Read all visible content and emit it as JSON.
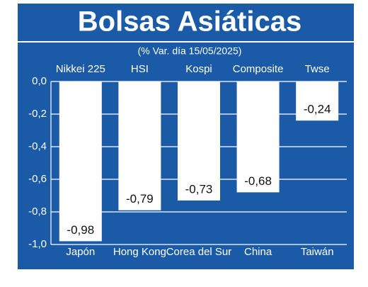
{
  "chart_data": {
    "type": "bar",
    "title": "Bolsas Asiáticas",
    "subtitle": "(% Var. día 15/05/2025)",
    "index_names": [
      "Nikkei 225",
      "HSI",
      "Kospi",
      "Composite",
      "Twse"
    ],
    "categories": [
      "Japón",
      "Hong Kong",
      "Corea del Sur",
      "China",
      "Taiwán"
    ],
    "values": [
      -0.98,
      -0.79,
      -0.73,
      -0.68,
      -0.24
    ],
    "value_labels": [
      "-0,98",
      "-0,79",
      "-0,73",
      "-0,68",
      "-0,24"
    ],
    "color": "#ffffff",
    "background": "#1b5aa6",
    "ylim": [
      -1.0,
      0.0
    ],
    "yticks": [
      {
        "value": 0.0,
        "label": "0,0"
      },
      {
        "value": -0.2,
        "label": "-0,2"
      },
      {
        "value": -0.4,
        "label": "-0,4"
      },
      {
        "value": -0.6,
        "label": "-0,6"
      },
      {
        "value": -0.8,
        "label": "-0,8"
      },
      {
        "value": -1.0,
        "label": "-1,0"
      }
    ],
    "grid": true
  }
}
